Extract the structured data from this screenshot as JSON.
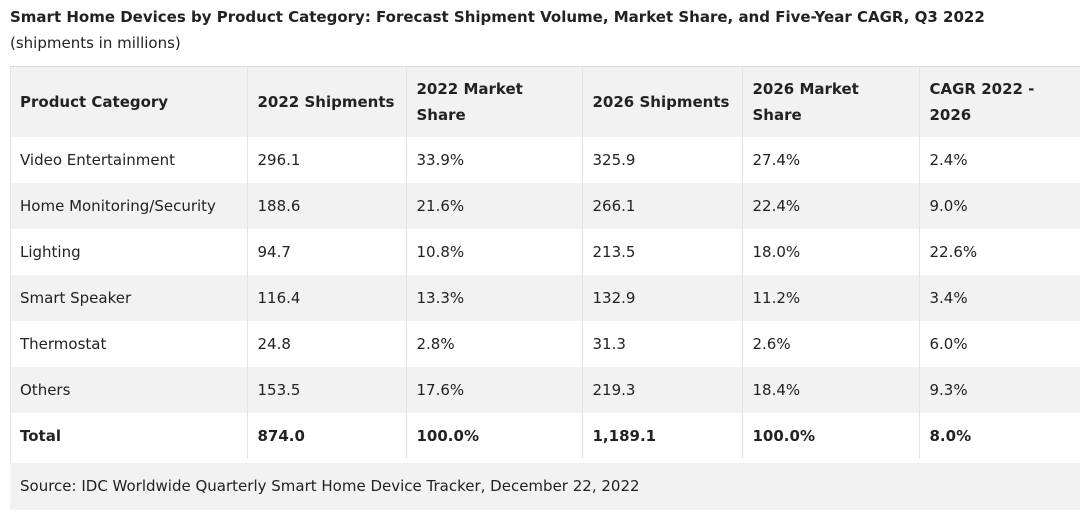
{
  "caption": {
    "title": "Smart Home Devices by Product Category: Forecast Shipment Volume, Market Share, and Five-Year CAGR, Q3 2022",
    "note": "(shipments in millions)"
  },
  "table": {
    "headers": [
      "Product Category",
      "2022 Shipments",
      "2022 Market Share",
      "2026 Shipments",
      "2026 Market Share",
      "CAGR 2022 - 2026"
    ],
    "rows": [
      [
        "Video Entertainment",
        "296.1",
        "33.9%",
        "325.9",
        "27.4%",
        "2.4%"
      ],
      [
        "Home Monitoring/Security",
        "188.6",
        "21.6%",
        "266.1",
        "22.4%",
        "9.0%"
      ],
      [
        "Lighting",
        "94.7",
        "10.8%",
        "213.5",
        "18.0%",
        "22.6%"
      ],
      [
        "Smart Speaker",
        "116.4",
        "13.3%",
        "132.9",
        "11.2%",
        "3.4%"
      ],
      [
        "Thermostat",
        "24.8",
        "2.8%",
        "31.3",
        "2.6%",
        "6.0%"
      ],
      [
        "Others",
        "153.5",
        "17.6%",
        "219.3",
        "18.4%",
        "9.3%"
      ],
      [
        "Total",
        "874.0",
        "100.0%",
        "1,189.1",
        "100.0%",
        "8.0%"
      ]
    ]
  },
  "source": "Source: IDC Worldwide Quarterly Smart Home Device Tracker, December 22, 2022",
  "colors": {
    "text": "#222222",
    "stripe": "#f2f2f2",
    "rule": "#e4e4e4"
  }
}
